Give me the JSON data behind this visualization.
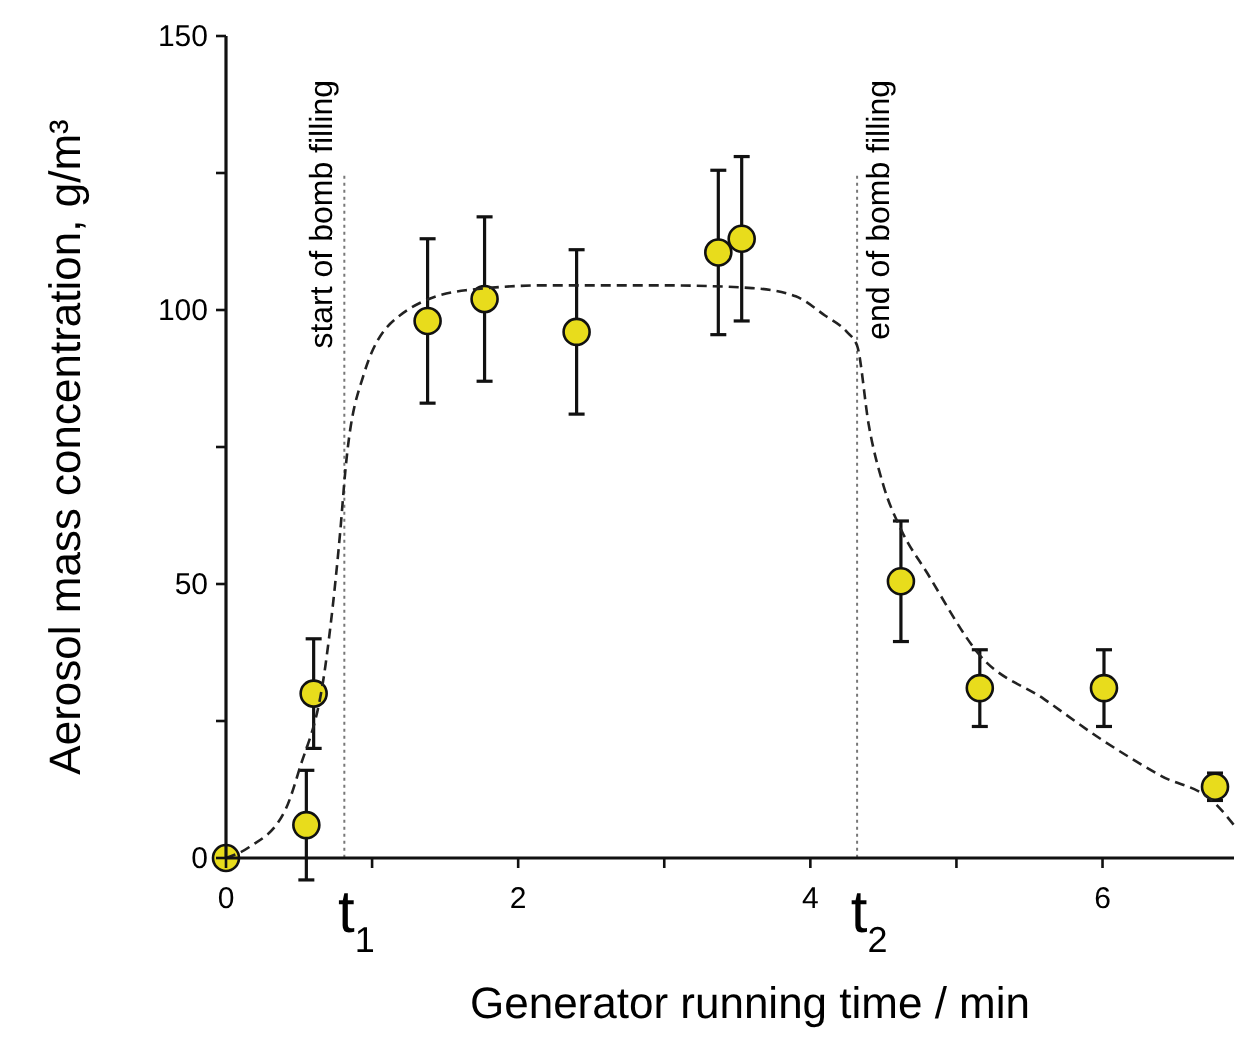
{
  "chart_data": {
    "type": "scatter",
    "xlabel": "Generator running time / min",
    "ylabel": "Aerosol mass concentration, g/m³",
    "xlim": [
      0,
      6.9
    ],
    "ylim": [
      0,
      150
    ],
    "xticks": [
      0,
      {
        "value": 1,
        "label": null
      },
      2,
      {
        "value": 3,
        "label": null
      },
      4,
      {
        "value": 5,
        "label": null
      },
      6
    ],
    "yticks": [
      0,
      {
        "value": 25,
        "label": null
      },
      50,
      {
        "value": 75,
        "label": null
      },
      100,
      {
        "value": 125,
        "label": null
      },
      150
    ],
    "grid": false,
    "series": [
      {
        "color": "#e8dc1c",
        "marker": "circle",
        "x": [
          0,
          0.55,
          0.6,
          1.38,
          1.77,
          2.4,
          3.37,
          3.53,
          4.62,
          5.16,
          6.01,
          6.77
        ],
        "values": [
          0,
          6,
          30,
          98,
          102,
          96,
          110.5,
          113,
          50.5,
          31,
          31,
          13
        ],
        "errors": [
          null,
          10,
          10,
          15,
          15,
          15,
          15,
          15,
          11,
          7,
          7,
          2.5
        ]
      },
      {
        "type": "line",
        "color": "#222222",
        "marker": "none",
        "line_style": "dashed",
        "x": [
          0,
          0.16,
          0.41,
          0.5,
          0.68,
          0.78,
          0.82,
          0.94,
          1.19,
          1.64,
          2.2,
          3,
          3.6,
          3.9,
          4.1,
          4.25,
          4.32,
          4.4,
          4.5,
          4.62,
          4.8,
          5.16,
          5.6,
          6.0,
          6.4,
          6.77,
          6.9
        ],
        "values": [
          0,
          2,
          9,
          16,
          35,
          59,
          71.5,
          88,
          99,
          103.6,
          104.5,
          104.5,
          104,
          102.5,
          99,
          96,
          93.5,
          79,
          68,
          60,
          52,
          37,
          29,
          21.5,
          15,
          10,
          6
        ]
      }
    ],
    "ref_lines": [
      {
        "axis": "x",
        "value": 0.81,
        "label": "t$_{1}$",
        "color": "#777777",
        "line_style": "dotted"
      },
      {
        "axis": "x",
        "value": 4.32,
        "label": "t$_{2}$",
        "color": "#777777",
        "line_style": "dotted"
      }
    ],
    "annotations": [
      "start of bomb filling",
      "end of bomb filling"
    ]
  }
}
